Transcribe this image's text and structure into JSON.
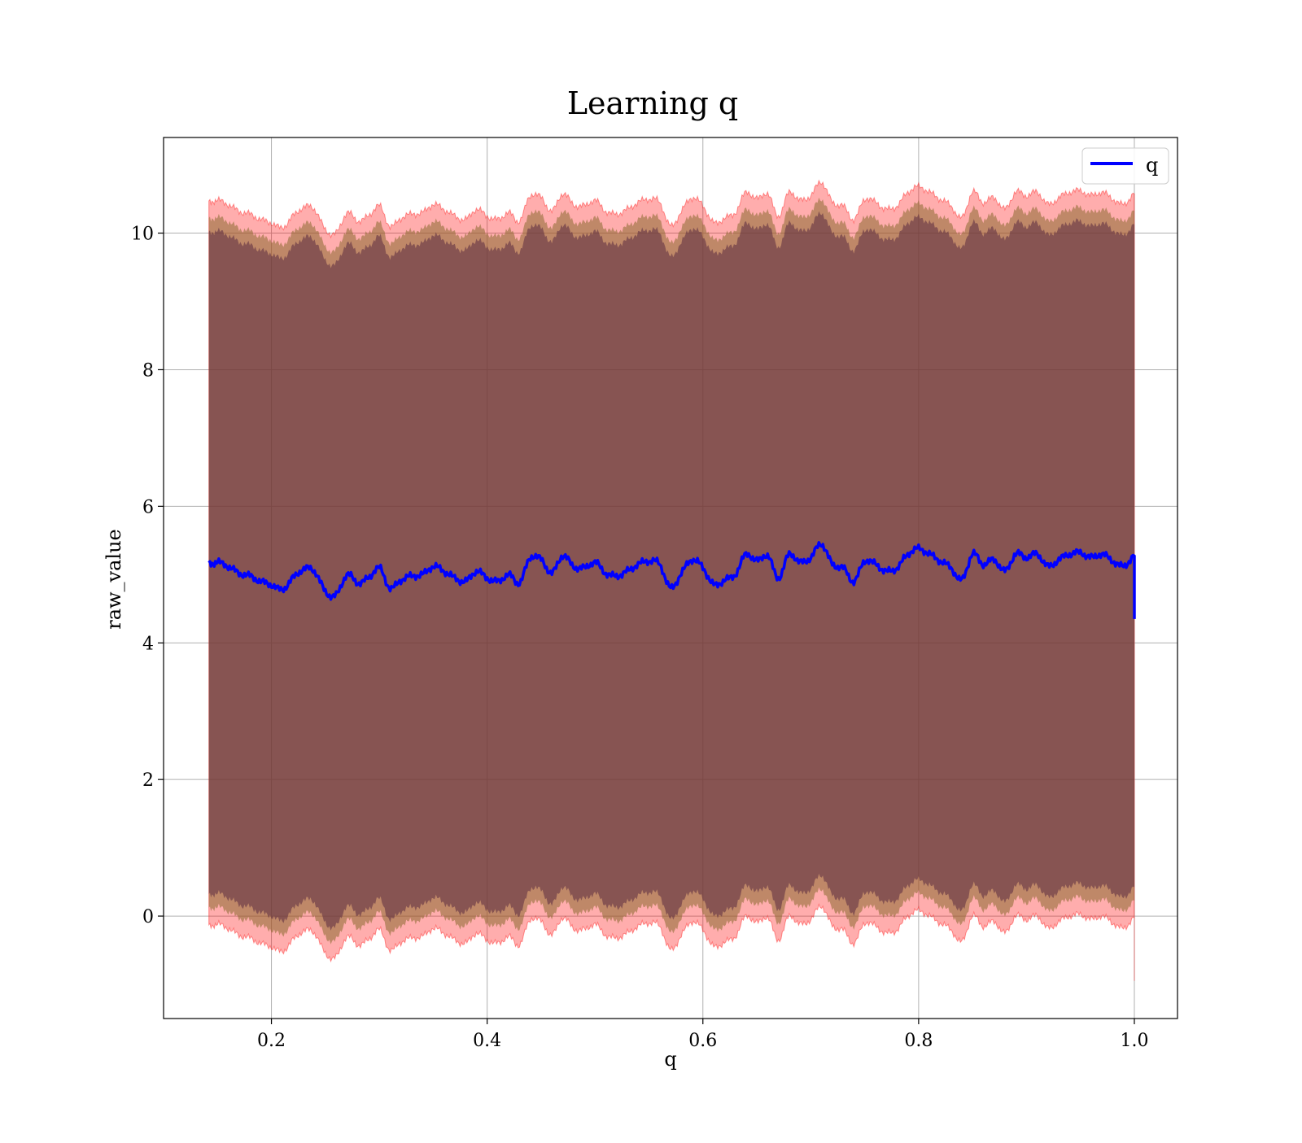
{
  "chart_data": {
    "type": "line",
    "title": "Learning q",
    "xlabel": "q",
    "ylabel": "raw_value",
    "xlim": [
      0.1,
      1.04
    ],
    "ylim": [
      -1.5,
      11.4
    ],
    "xticks": [
      0.2,
      0.4,
      0.6,
      0.8,
      1.0
    ],
    "xtick_labels": [
      "0.2",
      "0.4",
      "0.6",
      "0.8",
      "1.0"
    ],
    "yticks": [
      0,
      2,
      4,
      6,
      8,
      10
    ],
    "ytick_labels": [
      "0",
      "2",
      "4",
      "6",
      "8",
      "10"
    ],
    "grid": true,
    "legend": {
      "placement": "top-right",
      "entries": [
        "q"
      ]
    },
    "colors": {
      "line": "#0000ff",
      "band_outer": "#ff0000",
      "band_middle": "#8b6a30",
      "band_inner": "#5a2a40",
      "grid": "#b0b0b0"
    },
    "series": [
      {
        "name": "q",
        "x": [
          0.142,
          0.15,
          0.16,
          0.17,
          0.18,
          0.19,
          0.2,
          0.21,
          0.22,
          0.23,
          0.24,
          0.25,
          0.26,
          0.27,
          0.28,
          0.29,
          0.3,
          0.31,
          0.32,
          0.33,
          0.34,
          0.35,
          0.36,
          0.37,
          0.38,
          0.39,
          0.4,
          0.41,
          0.42,
          0.43,
          0.44,
          0.45,
          0.46,
          0.47,
          0.48,
          0.49,
          0.5,
          0.51,
          0.52,
          0.53,
          0.54,
          0.55,
          0.56,
          0.57,
          0.58,
          0.59,
          0.6,
          0.61,
          0.62,
          0.63,
          0.64,
          0.65,
          0.66,
          0.67,
          0.68,
          0.69,
          0.7,
          0.71,
          0.72,
          0.73,
          0.74,
          0.75,
          0.76,
          0.77,
          0.78,
          0.79,
          0.8,
          0.81,
          0.82,
          0.83,
          0.84,
          0.85,
          0.86,
          0.87,
          0.88,
          0.89,
          0.9,
          0.91,
          0.92,
          0.93,
          0.94,
          0.95,
          0.96,
          0.97,
          0.98,
          0.99,
          1.0,
          1.0
        ],
        "values": [
          5.15,
          5.18,
          5.12,
          5.02,
          4.98,
          4.9,
          4.85,
          4.78,
          4.95,
          5.08,
          5.05,
          4.75,
          4.7,
          5.0,
          4.88,
          4.95,
          5.1,
          4.8,
          4.92,
          4.98,
          5.0,
          5.12,
          5.05,
          4.95,
          4.9,
          5.05,
          4.95,
          4.9,
          5.0,
          4.88,
          5.25,
          5.22,
          5.02,
          5.28,
          5.12,
          5.1,
          5.18,
          5.02,
          4.98,
          5.05,
          5.15,
          5.2,
          5.15,
          4.8,
          5.02,
          5.22,
          5.1,
          4.85,
          4.92,
          5.0,
          5.3,
          5.2,
          5.28,
          4.95,
          5.3,
          5.18,
          5.25,
          5.45,
          5.15,
          5.1,
          4.9,
          5.2,
          5.15,
          5.05,
          5.1,
          5.3,
          5.38,
          5.3,
          5.2,
          5.1,
          4.92,
          5.3,
          5.15,
          5.22,
          5.05,
          5.3,
          5.25,
          5.3,
          5.12,
          5.22,
          5.3,
          5.32,
          5.25,
          5.3,
          5.2,
          5.12,
          5.28,
          4.35
        ]
      }
    ]
  }
}
